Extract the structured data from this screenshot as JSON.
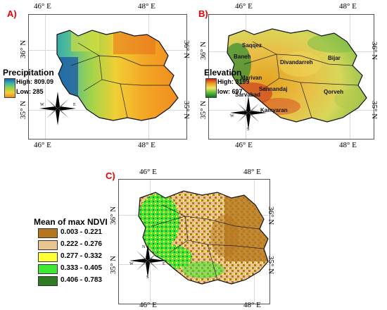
{
  "panels": {
    "a": {
      "label": "A)",
      "legend_title": "Precipitation",
      "legend_high": "High: 809.09",
      "legend_low": "Low: 285",
      "legend_colors": [
        "#1a5fa8",
        "#3fb8a8",
        "#9bd24a",
        "#f2d23a",
        "#f08a20"
      ],
      "coords": {
        "top_left": "46° E",
        "top_right": "48° E",
        "bottom_left": "46° E",
        "bottom_right": "48° E",
        "left_top": "36° N",
        "left_bottom": "35° N",
        "right_top": "36° N",
        "right_bottom": "35° N"
      }
    },
    "b": {
      "label": "B)",
      "legend_title": "Elevation",
      "legend_high": "High: 3199",
      "legend_low": "low: 697",
      "legend_colors": [
        "#c8231e",
        "#e8a01e",
        "#f4e36a",
        "#5cbf3a",
        "#0e6e2a"
      ],
      "coords": {
        "top_left": "46° E",
        "top_right": "48° E",
        "bottom_left": "46° E",
        "bottom_right": "48° E",
        "left_top": "36° N",
        "left_bottom": "35° N",
        "right_top": "36° N",
        "right_bottom": "35° N"
      },
      "cities": [
        "Saqqez",
        "Baneh",
        "Divandarreh",
        "Bijar",
        "Marivan",
        "Sannandaj",
        "Sarvabad",
        "Qorveh",
        "Kamyaran"
      ]
    },
    "c": {
      "label": "C)",
      "legend_title": "Mean of max NDVI",
      "classes": [
        {
          "range": "0.003 - 0.221",
          "color": "#b5771d"
        },
        {
          "range": "0.222 - 0.276",
          "color": "#e9c592"
        },
        {
          "range": "0.277 - 0.332",
          "color": "#ffff33"
        },
        {
          "range": "0.333 - 0.405",
          "color": "#3ee834"
        },
        {
          "range": "0.406 - 0.783",
          "color": "#2e7d23"
        }
      ],
      "coords": {
        "top_left": "46° E",
        "top_right": "48° E",
        "bottom_left": "46° E",
        "bottom_right": "48° E",
        "left_top": "36° N",
        "left_bottom": "35° N",
        "right_top": "36° N",
        "right_bottom": "35° N"
      }
    }
  },
  "compass": {
    "n": "N",
    "s": "S",
    "e": "E",
    "w": "W"
  }
}
